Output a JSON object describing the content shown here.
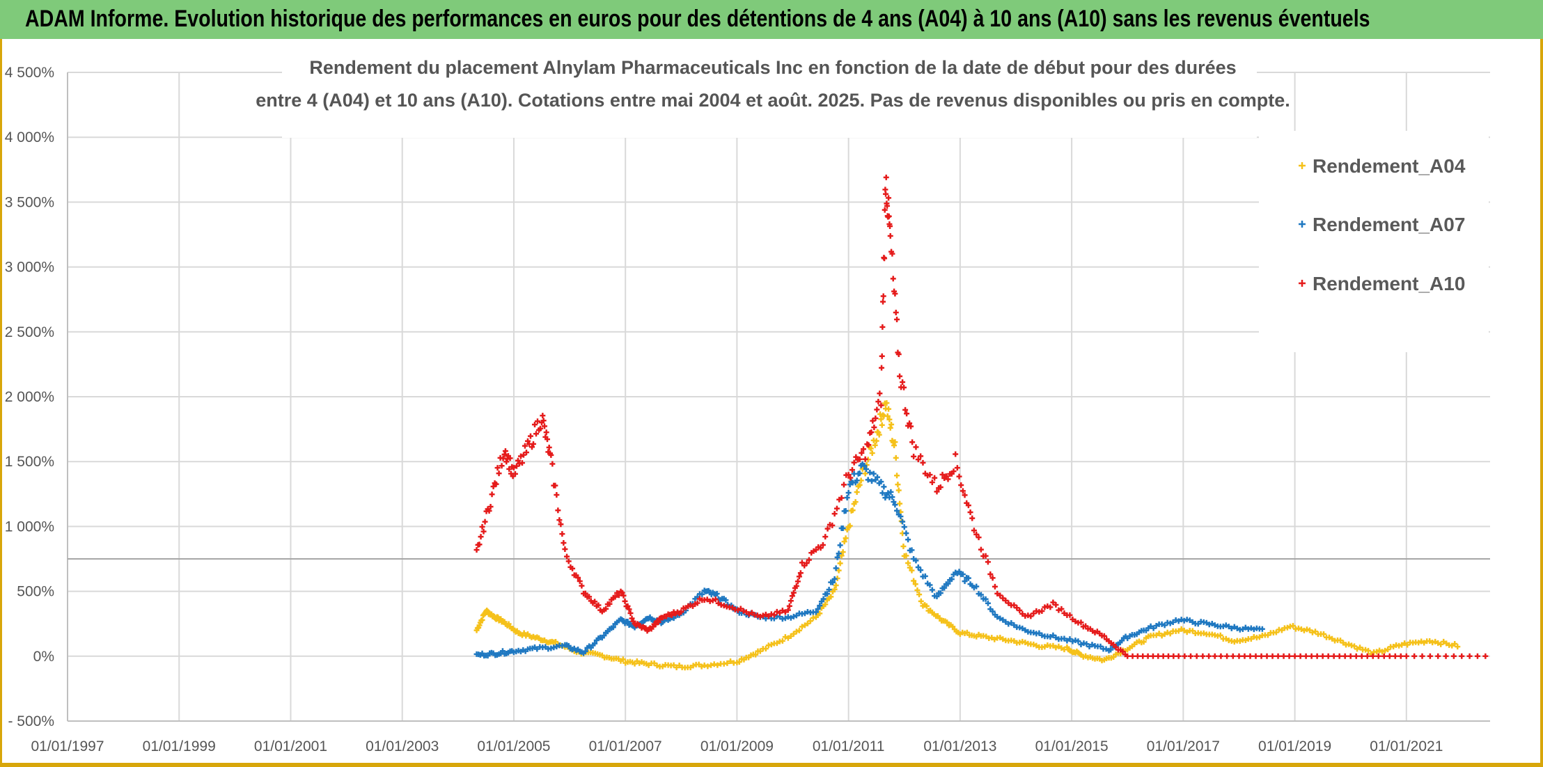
{
  "banner": {
    "text": "ADAM Informe. Evolution historique des performances en euros pour des détentions de 4 ans (A04) à 10 ans (A10) sans les revenus éventuels"
  },
  "chart_data": {
    "type": "scatter",
    "title_line1": "Rendement du placement Alnylam Pharmaceuticals Inc en fonction de la date de début pour des durées",
    "title_line2": "entre 4 (A04) et 10 ans (A10). Cotations entre mai 2004 et août. 2025. Pas de revenus disponibles ou pris en compte.",
    "x_tick_labels": [
      "01/01/1997",
      "01/01/1999",
      "01/01/2001",
      "01/01/2003",
      "01/01/2005",
      "01/01/2007",
      "01/01/2009",
      "01/01/2011",
      "01/01/2013",
      "01/01/2015",
      "01/01/2017",
      "01/01/2019",
      "01/01/2021"
    ],
    "x_range": [
      "01/01/1997",
      "01/07/2022"
    ],
    "y_tick_labels": [
      "- 500%",
      "0%",
      "500%",
      "1 000%",
      "1 500%",
      "2 000%",
      "2 500%",
      "3 000%",
      "3 500%",
      "4 000%",
      "4 500%"
    ],
    "y_range": [
      -500,
      4500
    ],
    "reference_line": 750,
    "marker": "+",
    "legend": {
      "position": "top-right"
    },
    "series": [
      {
        "name": "Rendement_A04",
        "color": "#f5c11a",
        "points": [
          [
            "2004-05",
            200
          ],
          [
            "2004-07",
            350
          ],
          [
            "2004-09",
            300
          ],
          [
            "2004-11",
            260
          ],
          [
            "2005-02",
            180
          ],
          [
            "2005-06",
            140
          ],
          [
            "2005-10",
            100
          ],
          [
            "2006-03",
            30
          ],
          [
            "2006-08",
            5
          ],
          [
            "2007-01",
            -40
          ],
          [
            "2007-06",
            -60
          ],
          [
            "2007-12",
            -80
          ],
          [
            "2008-06",
            -70
          ],
          [
            "2009-01",
            -40
          ],
          [
            "2009-06",
            40
          ],
          [
            "2009-12",
            150
          ],
          [
            "2010-06",
            300
          ],
          [
            "2010-10",
            500
          ],
          [
            "2011-01",
            1000
          ],
          [
            "2011-04",
            1400
          ],
          [
            "2011-07",
            1700
          ],
          [
            "2011-09",
            1950
          ],
          [
            "2011-11",
            1600
          ],
          [
            "2012-01",
            800
          ],
          [
            "2012-05",
            400
          ],
          [
            "2012-09",
            280
          ],
          [
            "2013-01",
            180
          ],
          [
            "2013-06",
            150
          ],
          [
            "2013-12",
            120
          ],
          [
            "2014-06",
            80
          ],
          [
            "2014-12",
            60
          ],
          [
            "2015-03",
            10
          ],
          [
            "2015-08",
            -30
          ],
          [
            "2016-01",
            60
          ],
          [
            "2016-06",
            150
          ],
          [
            "2016-12",
            200
          ],
          [
            "2017-06",
            180
          ],
          [
            "2017-12",
            120
          ],
          [
            "2018-06",
            150
          ],
          [
            "2018-12",
            230
          ],
          [
            "2019-06",
            180
          ],
          [
            "2019-12",
            100
          ],
          [
            "2020-06",
            20
          ],
          [
            "2020-12",
            90
          ],
          [
            "2021-06",
            120
          ],
          [
            "2021-12",
            80
          ]
        ]
      },
      {
        "name": "Rendement_A07",
        "color": "#1f78c1",
        "points": [
          [
            "2004-05",
            10
          ],
          [
            "2004-09",
            20
          ],
          [
            "2005-01",
            40
          ],
          [
            "2005-06",
            60
          ],
          [
            "2005-12",
            80
          ],
          [
            "2006-04",
            30
          ],
          [
            "2006-08",
            150
          ],
          [
            "2006-12",
            280
          ],
          [
            "2007-03",
            230
          ],
          [
            "2007-06",
            300
          ],
          [
            "2007-09",
            260
          ],
          [
            "2008-01",
            330
          ],
          [
            "2008-06",
            500
          ],
          [
            "2008-09",
            460
          ],
          [
            "2009-01",
            350
          ],
          [
            "2009-06",
            300
          ],
          [
            "2009-12",
            300
          ],
          [
            "2010-06",
            350
          ],
          [
            "2010-10",
            600
          ],
          [
            "2011-01",
            1300
          ],
          [
            "2011-04",
            1450
          ],
          [
            "2011-08",
            1300
          ],
          [
            "2011-11",
            1200
          ],
          [
            "2012-03",
            750
          ],
          [
            "2012-08",
            450
          ],
          [
            "2012-12",
            650
          ],
          [
            "2013-04",
            550
          ],
          [
            "2013-09",
            300
          ],
          [
            "2014-03",
            200
          ],
          [
            "2014-09",
            150
          ],
          [
            "2015-03",
            100
          ],
          [
            "2015-09",
            50
          ],
          [
            "2016-01",
            150
          ],
          [
            "2016-06",
            220
          ],
          [
            "2016-12",
            280
          ],
          [
            "2017-06",
            250
          ],
          [
            "2017-12",
            220
          ],
          [
            "2018-06",
            200
          ]
        ]
      },
      {
        "name": "Rendement_A10",
        "color": "#e51b1b",
        "points": [
          [
            "2004-05",
            800
          ],
          [
            "2004-08",
            1200
          ],
          [
            "2004-11",
            1600
          ],
          [
            "2005-01",
            1400
          ],
          [
            "2005-04",
            1600
          ],
          [
            "2005-07",
            1850
          ],
          [
            "2005-09",
            1500
          ],
          [
            "2005-12",
            800
          ],
          [
            "2006-04",
            500
          ],
          [
            "2006-08",
            350
          ],
          [
            "2006-12",
            500
          ],
          [
            "2007-03",
            250
          ],
          [
            "2007-06",
            200
          ],
          [
            "2007-09",
            300
          ],
          [
            "2008-01",
            350
          ],
          [
            "2008-06",
            450
          ],
          [
            "2008-12",
            380
          ],
          [
            "2009-06",
            300
          ],
          [
            "2009-12",
            350
          ],
          [
            "2010-03",
            700
          ],
          [
            "2010-08",
            900
          ],
          [
            "2011-01",
            1400
          ],
          [
            "2011-05",
            1600
          ],
          [
            "2011-08",
            2000
          ],
          [
            "2011-09",
            3700
          ],
          [
            "2011-10",
            3200
          ],
          [
            "2011-12",
            2200
          ],
          [
            "2012-03",
            1600
          ],
          [
            "2012-08",
            1300
          ],
          [
            "2012-12",
            1500
          ],
          [
            "2013-04",
            1000
          ],
          [
            "2013-09",
            500
          ],
          [
            "2014-03",
            300
          ],
          [
            "2014-09",
            400
          ],
          [
            "2015-03",
            250
          ],
          [
            "2015-08",
            150
          ],
          [
            "2016-01",
            0
          ],
          [
            "2016-12",
            0
          ],
          [
            "2018-01",
            0
          ],
          [
            "2019-01",
            0
          ],
          [
            "2020-01",
            0
          ],
          [
            "2021-01",
            0
          ],
          [
            "2022-06",
            0
          ]
        ]
      }
    ]
  }
}
